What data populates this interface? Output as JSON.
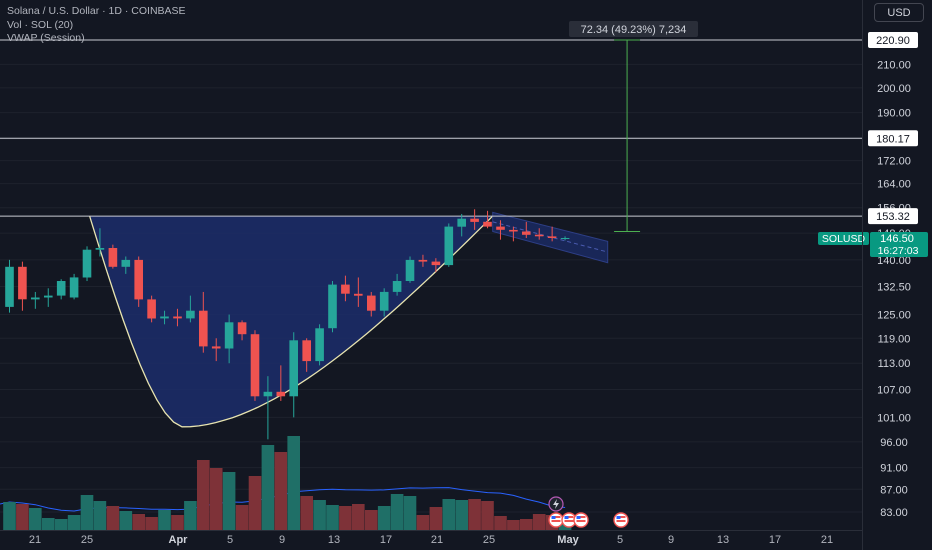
{
  "header": {
    "title": "Solana / U.S. Dollar · 1D · COINBASE",
    "volume_label": "Vol · SOL (20)",
    "vwap_label": "VWAP (Session)"
  },
  "toolbar": {
    "currency": "USD"
  },
  "colors": {
    "background": "#131722",
    "up": "#26a69a",
    "down": "#ef5350",
    "vol_up": "#1f6f67",
    "vol_down": "#7e3238",
    "pattern_fill": "#1c2d6b",
    "cup_line": "#e8e4b0",
    "target_line": "#4caf50",
    "level_line": "#c9cbd3",
    "vol_ma": "#2962ff",
    "axis_text": "#b2b5be"
  },
  "measure_label": "72.34 (49.23%) 7,234",
  "symbol_tag": {
    "symbol": "SOLUSD",
    "price": "146.50",
    "countdown": "16:27:03"
  },
  "chart_data": {
    "type": "candlestick",
    "title": "Solana / U.S. Dollar · 1D · COINBASE",
    "x_tick_labels": [
      "21",
      "25",
      "Apr",
      "5",
      "9",
      "13",
      "17",
      "21",
      "25",
      "May",
      "5",
      "9",
      "13",
      "17",
      "21"
    ],
    "y_tick_labels": [
      "83.00",
      "87.00",
      "91.00",
      "96.00",
      "101.00",
      "107.00",
      "113.00",
      "119.00",
      "125.00",
      "132.50",
      "140.00",
      "148.00",
      "156.00",
      "164.00",
      "172.00",
      "180.00",
      "190.00",
      "200.00",
      "210.00"
    ],
    "y_scale": "log",
    "ylim": [
      81,
      232
    ],
    "levels": [
      {
        "label": "220.90",
        "value": 220.9
      },
      {
        "label": "180.17",
        "value": 180.17
      },
      {
        "label": "153.32",
        "value": 153.32
      }
    ],
    "last_price": 146.5,
    "candles": [
      {
        "date": "Mar 18",
        "o": 127.0,
        "h": 140.0,
        "l": 125.5,
        "c": 138.0
      },
      {
        "date": "Mar 19",
        "o": 138.0,
        "h": 139.5,
        "l": 126.0,
        "c": 129.0
      },
      {
        "date": "Mar 20",
        "o": 129.0,
        "h": 131.0,
        "l": 126.5,
        "c": 129.5
      },
      {
        "date": "Mar 21",
        "o": 129.5,
        "h": 132.0,
        "l": 127.0,
        "c": 130.0
      },
      {
        "date": "Mar 22",
        "o": 130.0,
        "h": 134.5,
        "l": 129.0,
        "c": 134.0
      },
      {
        "date": "Mar 23",
        "o": 129.5,
        "h": 136.0,
        "l": 129.0,
        "c": 135.0
      },
      {
        "date": "Mar 24",
        "o": 135.0,
        "h": 144.0,
        "l": 134.0,
        "c": 143.0
      },
      {
        "date": "Mar 25",
        "o": 143.0,
        "h": 149.5,
        "l": 141.0,
        "c": 143.5
      },
      {
        "date": "Mar 26",
        "o": 143.5,
        "h": 144.5,
        "l": 137.5,
        "c": 138.0
      },
      {
        "date": "Mar 27",
        "o": 138.0,
        "h": 141.0,
        "l": 136.0,
        "c": 140.0
      },
      {
        "date": "Mar 28",
        "o": 140.0,
        "h": 141.0,
        "l": 127.0,
        "c": 129.0
      },
      {
        "date": "Mar 29",
        "o": 129.0,
        "h": 130.0,
        "l": 123.0,
        "c": 124.0
      },
      {
        "date": "Mar 30",
        "o": 124.0,
        "h": 126.0,
        "l": 122.5,
        "c": 124.5
      },
      {
        "date": "Mar 31",
        "o": 124.5,
        "h": 126.5,
        "l": 122.0,
        "c": 124.0
      },
      {
        "date": "Apr 1",
        "o": 124.0,
        "h": 130.0,
        "l": 123.0,
        "c": 126.0
      },
      {
        "date": "Apr 2",
        "o": 126.0,
        "h": 131.0,
        "l": 115.5,
        "c": 117.0
      },
      {
        "date": "Apr 3",
        "o": 117.0,
        "h": 119.0,
        "l": 113.5,
        "c": 116.5
      },
      {
        "date": "Apr 4",
        "o": 116.5,
        "h": 125.0,
        "l": 113.0,
        "c": 123.0
      },
      {
        "date": "Apr 5",
        "o": 123.0,
        "h": 123.5,
        "l": 118.5,
        "c": 120.0
      },
      {
        "date": "Apr 6",
        "o": 120.0,
        "h": 121.0,
        "l": 104.5,
        "c": 105.5
      },
      {
        "date": "Apr 7",
        "o": 105.5,
        "h": 110.0,
        "l": 96.5,
        "c": 106.5
      },
      {
        "date": "Apr 8",
        "o": 106.5,
        "h": 112.5,
        "l": 104.5,
        "c": 105.5
      },
      {
        "date": "Apr 9",
        "o": 105.5,
        "h": 120.5,
        "l": 101.0,
        "c": 118.5
      },
      {
        "date": "Apr 10",
        "o": 118.5,
        "h": 119.0,
        "l": 111.0,
        "c": 113.5
      },
      {
        "date": "Apr 11",
        "o": 113.5,
        "h": 122.5,
        "l": 112.5,
        "c": 121.5
      },
      {
        "date": "Apr 12",
        "o": 121.5,
        "h": 134.0,
        "l": 120.5,
        "c": 133.0
      },
      {
        "date": "Apr 13",
        "o": 133.0,
        "h": 135.5,
        "l": 128.5,
        "c": 130.5
      },
      {
        "date": "Apr 14",
        "o": 130.5,
        "h": 135.0,
        "l": 127.0,
        "c": 130.0
      },
      {
        "date": "Apr 15",
        "o": 130.0,
        "h": 131.0,
        "l": 124.5,
        "c": 126.0
      },
      {
        "date": "Apr 16",
        "o": 126.0,
        "h": 132.0,
        "l": 124.5,
        "c": 131.0
      },
      {
        "date": "Apr 17",
        "o": 131.0,
        "h": 136.0,
        "l": 130.0,
        "c": 134.0
      },
      {
        "date": "Apr 18",
        "o": 134.0,
        "h": 141.0,
        "l": 133.5,
        "c": 140.0
      },
      {
        "date": "Apr 19",
        "o": 140.0,
        "h": 141.5,
        "l": 138.0,
        "c": 139.5
      },
      {
        "date": "Apr 20",
        "o": 139.5,
        "h": 140.5,
        "l": 136.5,
        "c": 138.5
      },
      {
        "date": "Apr 21",
        "o": 138.5,
        "h": 151.0,
        "l": 138.0,
        "c": 150.0
      },
      {
        "date": "Apr 22",
        "o": 150.0,
        "h": 154.0,
        "l": 147.0,
        "c": 152.5
      },
      {
        "date": "Apr 23",
        "o": 152.5,
        "h": 155.5,
        "l": 149.0,
        "c": 151.5
      },
      {
        "date": "Apr 24",
        "o": 151.5,
        "h": 155.0,
        "l": 149.5,
        "c": 150.0
      },
      {
        "date": "Apr 25",
        "o": 150.0,
        "h": 152.0,
        "l": 146.0,
        "c": 149.0
      },
      {
        "date": "Apr 26",
        "o": 149.0,
        "h": 150.0,
        "l": 145.5,
        "c": 148.5
      },
      {
        "date": "Apr 27",
        "o": 148.5,
        "h": 151.5,
        "l": 146.5,
        "c": 147.5
      },
      {
        "date": "Apr 28",
        "o": 147.5,
        "h": 149.5,
        "l": 146.0,
        "c": 147.0
      },
      {
        "date": "Apr 29",
        "o": 147.0,
        "h": 150.0,
        "l": 145.5,
        "c": 146.5
      },
      {
        "date": "Apr 30",
        "o": 146.5,
        "h": 147.0,
        "l": 145.8,
        "c": 146.5
      }
    ],
    "volume": [
      0.28,
      0.26,
      0.22,
      0.12,
      0.11,
      0.15,
      0.35,
      0.29,
      0.24,
      0.19,
      0.16,
      0.13,
      0.2,
      0.15,
      0.29,
      0.7,
      0.62,
      0.58,
      0.25,
      0.54,
      0.85,
      0.78,
      0.94,
      0.34,
      0.3,
      0.25,
      0.24,
      0.26,
      0.2,
      0.24,
      0.36,
      0.34,
      0.15,
      0.23,
      0.31,
      0.3,
      0.31,
      0.29,
      0.14,
      0.1,
      0.11,
      0.16,
      0.15,
      0.06
    ]
  }
}
